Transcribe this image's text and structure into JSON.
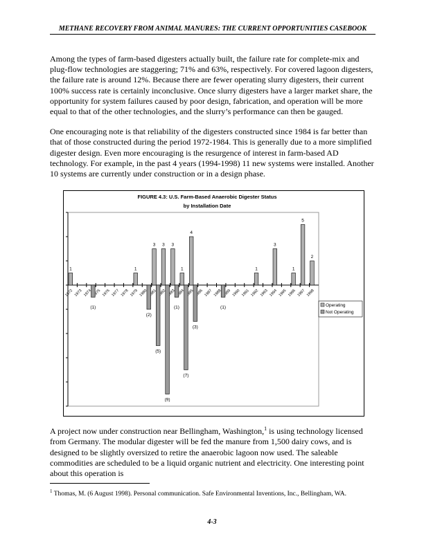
{
  "header": "METHANE RECOVERY FROM ANIMAL MANURES:  THE CURRENT OPPORTUNITIES CASEBOOK",
  "paragraphs": [
    "Among the types of farm-based digesters actually built, the failure rate for complete-mix and plug-flow technologies are staggering; 71% and 63%, respectively. For covered lagoon digesters, the failure rate is around 12%. Because there are fewer operating slurry digesters, their current 100% success rate is certainly inconclusive. Once slurry digesters have a larger market share, the opportunity for system failures caused by poor design, fabrication, and operation will be more equal to that of the other technologies, and the slurry’s performance can then be gauged.",
    "One encouraging note is that reliability of the digesters constructed since 1984 is far better than that of those constructed during the period 1972-1984. This is generally due to a more simplified digester design. Even more encouraging is the resurgence of interest in farm-based AD technology. For example, in the past 4 years (1994-1998) 11 new systems were installed. Another 10 systems are currently under construction or in a design phase."
  ],
  "para3": {
    "before": "A project now under construction near Bellingham, Washington,",
    "sup": "1",
    "after": " is using technology licensed from Germany. The modular digester will be fed the manure from 1,500 dairy cows, and is designed to be slightly oversized to retire the anaerobic lagoon now used. The saleable commodities are scheduled to be a liquid organic nutrient and electricity. One interesting point about this operation is"
  },
  "footnote": {
    "mark": "1",
    "text": " Thomas, M. (6 August 1998).  Personal communication.  Safe Environmental Inventions, Inc., Bellingham, WA."
  },
  "page_number": "4-3",
  "chart_data": {
    "type": "bar",
    "title": "FIGURE 4.3: U.S. Farm-Based Anaerobic Digester Status",
    "subtitle": "by Installation Date",
    "categories": [
      "1972",
      "1973",
      "1974",
      "1975",
      "1976",
      "1977",
      "1978",
      "1979",
      "1980",
      "1981",
      "1982",
      "1983",
      "1984",
      "1985",
      "1986",
      "1987",
      "1988",
      "1989",
      "1990",
      "1991",
      "1992",
      "1993",
      "1994",
      "1995",
      "1996",
      "1997",
      "1998"
    ],
    "series": [
      {
        "name": "Operating",
        "values": [
          1,
          0,
          0,
          0,
          0,
          0,
          0,
          1,
          0,
          3,
          3,
          3,
          1,
          4,
          0,
          0,
          0,
          0,
          0,
          0,
          1,
          0,
          3,
          0,
          1,
          5,
          2
        ],
        "color": "#b0b0b0"
      },
      {
        "name": "Not Operating",
        "values": [
          0,
          0,
          -1,
          0,
          0,
          0,
          0,
          0,
          -2,
          -5,
          -9,
          -1,
          -7,
          -3,
          0,
          0,
          -1,
          0,
          0,
          0,
          0,
          0,
          0,
          0,
          0,
          0,
          0
        ],
        "color": "#9a9a9a"
      }
    ],
    "ylim": [
      -10,
      6
    ],
    "yticks": [
      6,
      4,
      2,
      0,
      -2,
      -4,
      -6,
      -8,
      -10
    ],
    "legend": "right"
  }
}
